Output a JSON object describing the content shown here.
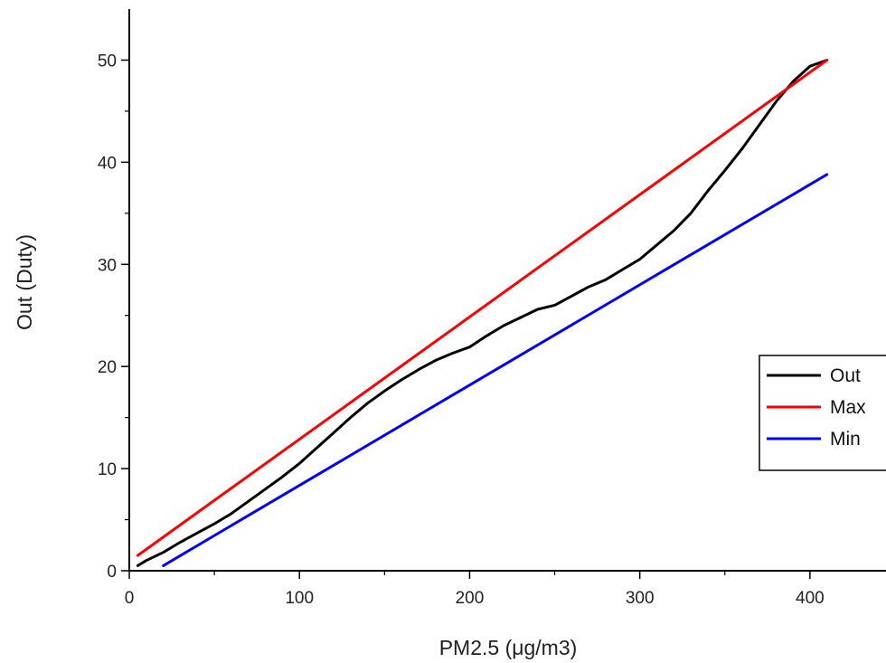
{
  "chart_data": {
    "type": "line",
    "title": "",
    "xlabel": "PM2.5 (μg/m3)",
    "ylabel": "Out (Duty)",
    "xlim": [
      0,
      450
    ],
    "ylim": [
      0,
      55
    ],
    "x_ticks": [
      0,
      100,
      200,
      300,
      400
    ],
    "y_ticks": [
      0,
      10,
      20,
      30,
      40,
      50
    ],
    "grid": false,
    "legend_position": "right",
    "series": [
      {
        "name": "Out",
        "color": "#000000",
        "points": [
          [
            5,
            0.5
          ],
          [
            10,
            1
          ],
          [
            20,
            1.8
          ],
          [
            30,
            2.8
          ],
          [
            40,
            3.7
          ],
          [
            50,
            4.6
          ],
          [
            60,
            5.6
          ],
          [
            70,
            6.8
          ],
          [
            80,
            8
          ],
          [
            90,
            9.2
          ],
          [
            100,
            10.5
          ],
          [
            110,
            12
          ],
          [
            120,
            13.5
          ],
          [
            130,
            15
          ],
          [
            140,
            16.4
          ],
          [
            150,
            17.6
          ],
          [
            160,
            18.7
          ],
          [
            170,
            19.7
          ],
          [
            180,
            20.6
          ],
          [
            190,
            21.3
          ],
          [
            200,
            21.9
          ],
          [
            210,
            23
          ],
          [
            220,
            24
          ],
          [
            230,
            24.8
          ],
          [
            240,
            25.6
          ],
          [
            250,
            26
          ],
          [
            260,
            26.9
          ],
          [
            270,
            27.8
          ],
          [
            280,
            28.5
          ],
          [
            290,
            29.5
          ],
          [
            300,
            30.5
          ],
          [
            310,
            31.9
          ],
          [
            320,
            33.3
          ],
          [
            330,
            35
          ],
          [
            340,
            37.2
          ],
          [
            350,
            39.2
          ],
          [
            360,
            41.3
          ],
          [
            370,
            43.6
          ],
          [
            380,
            45.9
          ],
          [
            390,
            47.9
          ],
          [
            400,
            49.4
          ],
          [
            410,
            50
          ]
        ]
      },
      {
        "name": "Max",
        "color": "#ff0000",
        "points": [
          [
            5,
            1.5
          ],
          [
            410,
            50
          ]
        ]
      },
      {
        "name": "Min",
        "color": "#0000ff",
        "points": [
          [
            20,
            0.5
          ],
          [
            410,
            38.8
          ]
        ]
      }
    ]
  }
}
